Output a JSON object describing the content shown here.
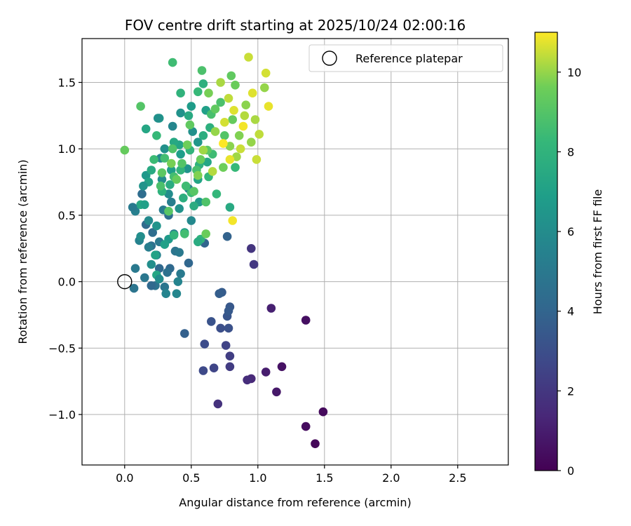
{
  "chart_data": {
    "type": "scatter",
    "title": "FOV centre drift starting at 2025/10/24 02:00:16",
    "xlabel": "Angular distance from reference (arcmin)",
    "ylabel": "Rotation from reference (arcmin)",
    "xlim": [
      -0.32,
      2.88
    ],
    "ylim": [
      -1.38,
      1.83
    ],
    "xticks": [
      0.0,
      0.5,
      1.0,
      1.5,
      2.0,
      2.5
    ],
    "xtick_labels": [
      "0.0",
      "0.5",
      "1.0",
      "1.5",
      "2.0",
      "2.5"
    ],
    "yticks": [
      -1.0,
      -0.5,
      0.0,
      0.5,
      1.0,
      1.5
    ],
    "ytick_labels": [
      "−1.0",
      "−0.5",
      "0.0",
      "0.5",
      "1.0",
      "1.5"
    ],
    "grid": true,
    "legend": {
      "position": "top-right",
      "entries": [
        "Reference platepar"
      ]
    },
    "colorbar": {
      "label": "Hours from first FF file",
      "range": [
        0,
        11
      ],
      "ticks": [
        0,
        2,
        4,
        6,
        8,
        10
      ],
      "tick_labels": [
        "0",
        "2",
        "4",
        "6",
        "8",
        "10"
      ],
      "colormap": "viridis"
    },
    "reference_point": {
      "name": "Reference platepar",
      "x": 0.0,
      "y": 0.0
    },
    "series": [
      {
        "values_format": "x, y, hours",
        "points": [
          [
            1.43,
            -1.22,
            0.2
          ],
          [
            1.49,
            -0.98,
            0.3
          ],
          [
            1.36,
            -1.09,
            0.4
          ],
          [
            1.36,
            -0.29,
            0.5
          ],
          [
            1.18,
            -0.64,
            0.6
          ],
          [
            1.14,
            -0.83,
            0.8
          ],
          [
            1.06,
            -0.68,
            1.0
          ],
          [
            1.1,
            -0.2,
            1.1
          ],
          [
            0.95,
            -0.73,
            1.4
          ],
          [
            0.92,
            -0.74,
            1.6
          ],
          [
            0.7,
            -0.92,
            1.8
          ],
          [
            0.95,
            0.25,
            1.9
          ],
          [
            0.97,
            0.13,
            2.0
          ],
          [
            0.79,
            -0.64,
            2.2
          ],
          [
            0.79,
            -0.56,
            2.3
          ],
          [
            0.76,
            -0.48,
            2.5
          ],
          [
            0.67,
            -0.65,
            2.6
          ],
          [
            0.59,
            -0.67,
            2.8
          ],
          [
            0.6,
            -0.47,
            2.9
          ],
          [
            0.72,
            -0.35,
            3.0
          ],
          [
            0.78,
            -0.35,
            3.1
          ],
          [
            0.65,
            -0.3,
            3.2
          ],
          [
            0.77,
            -0.26,
            3.3
          ],
          [
            0.79,
            -0.19,
            3.4
          ],
          [
            0.78,
            -0.22,
            3.5
          ],
          [
            0.73,
            -0.08,
            3.6
          ],
          [
            0.71,
            -0.09,
            3.7
          ],
          [
            0.45,
            -0.39,
            3.8
          ],
          [
            0.77,
            0.34,
            3.9
          ],
          [
            0.6,
            0.29,
            4.0
          ],
          [
            0.48,
            0.14,
            4.1
          ],
          [
            0.34,
            0.1,
            4.2
          ],
          [
            0.26,
            0.1,
            4.2
          ],
          [
            0.16,
            0.43,
            4.3
          ],
          [
            0.13,
            0.66,
            4.4
          ],
          [
            0.21,
            0.37,
            4.4
          ],
          [
            0.33,
            0.5,
            4.5
          ],
          [
            0.2,
            0.27,
            4.6
          ],
          [
            0.32,
            0.07,
            4.6
          ],
          [
            0.23,
            -0.03,
            4.7
          ],
          [
            0.3,
            -0.04,
            4.8
          ],
          [
            0.38,
            0.23,
            4.8
          ],
          [
            0.15,
            0.03,
            4.9
          ],
          [
            0.26,
            0.3,
            5.0
          ],
          [
            0.41,
            0.22,
            5.0
          ],
          [
            0.42,
            0.06,
            5.1
          ],
          [
            0.29,
            0.54,
            5.2
          ],
          [
            0.37,
            0.36,
            5.2
          ],
          [
            0.35,
            0.6,
            5.3
          ],
          [
            0.48,
            0.7,
            5.4
          ],
          [
            0.08,
            0.53,
            5.4
          ],
          [
            0.11,
            0.31,
            5.5
          ],
          [
            0.24,
            0.2,
            5.5
          ],
          [
            0.4,
            0.0,
            5.6
          ],
          [
            0.31,
            -0.09,
            5.6
          ],
          [
            0.39,
            -0.09,
            5.7
          ],
          [
            0.36,
            1.17,
            5.7
          ],
          [
            0.27,
            0.93,
            5.8
          ],
          [
            0.5,
            0.46,
            5.8
          ],
          [
            0.18,
            0.46,
            5.9
          ],
          [
            0.28,
            0.77,
            6.0
          ],
          [
            0.33,
            0.66,
            6.0
          ],
          [
            0.2,
            0.13,
            6.1
          ],
          [
            0.12,
            0.34,
            6.1
          ],
          [
            0.3,
            1.0,
            6.2
          ],
          [
            0.51,
            1.13,
            6.2
          ],
          [
            0.42,
            1.27,
            6.3
          ],
          [
            0.41,
            0.55,
            6.3
          ],
          [
            0.24,
            0.42,
            6.4
          ],
          [
            0.47,
            0.85,
            6.4
          ],
          [
            0.55,
            1.05,
            6.5
          ],
          [
            0.26,
            1.23,
            6.5
          ],
          [
            0.56,
            0.6,
            6.6
          ],
          [
            0.16,
            0.8,
            6.6
          ],
          [
            0.33,
            0.32,
            6.7
          ],
          [
            0.45,
            0.37,
            6.8
          ],
          [
            0.5,
            1.32,
            6.8
          ],
          [
            0.42,
            0.96,
            6.9
          ],
          [
            0.35,
            0.84,
            6.9
          ],
          [
            0.61,
            1.29,
            7.0
          ],
          [
            0.3,
            0.28,
            7.0
          ],
          [
            0.18,
            0.75,
            7.1
          ],
          [
            0.23,
            0.2,
            7.1
          ],
          [
            0.55,
            0.77,
            7.2
          ],
          [
            0.41,
            1.03,
            7.2
          ],
          [
            0.62,
            0.9,
            7.3
          ],
          [
            0.24,
            0.05,
            7.3
          ],
          [
            0.12,
            0.58,
            7.4
          ],
          [
            0.37,
            1.05,
            7.4
          ],
          [
            0.48,
            1.25,
            7.5
          ],
          [
            0.2,
            0.84,
            7.5
          ],
          [
            0.52,
            0.57,
            7.6
          ],
          [
            0.34,
            0.73,
            7.6
          ],
          [
            0.59,
            1.1,
            7.7
          ],
          [
            0.44,
            0.63,
            7.7
          ],
          [
            0.59,
            1.49,
            7.8
          ],
          [
            0.64,
            1.16,
            7.8
          ],
          [
            0.28,
            0.68,
            7.9
          ],
          [
            0.56,
            0.88,
            7.9
          ],
          [
            0.42,
            0.84,
            8.0
          ],
          [
            0.57,
            0.32,
            8.0
          ],
          [
            0.49,
            0.99,
            8.1
          ],
          [
            0.37,
            0.35,
            8.1
          ],
          [
            0.63,
            0.79,
            8.2
          ],
          [
            0.69,
            0.66,
            8.2
          ],
          [
            0.24,
            1.1,
            8.3
          ],
          [
            0.55,
            1.43,
            8.3
          ],
          [
            0.5,
            0.67,
            8.4
          ],
          [
            0.22,
            0.92,
            8.4
          ],
          [
            0.66,
            0.96,
            8.5
          ],
          [
            0.46,
            0.72,
            8.5
          ],
          [
            0.3,
            0.93,
            8.6
          ],
          [
            0.37,
            0.79,
            8.6
          ],
          [
            0.65,
            1.26,
            8.7
          ],
          [
            0.54,
            0.84,
            8.7
          ],
          [
            0.27,
            0.72,
            8.8
          ],
          [
            0.72,
            1.35,
            8.8
          ],
          [
            0.61,
            0.6,
            8.9
          ],
          [
            0.36,
            1.0,
            8.9
          ],
          [
            0.43,
            0.89,
            9.0
          ],
          [
            0.75,
            1.1,
            9.0
          ],
          [
            0.33,
            0.53,
            9.1
          ],
          [
            0.52,
            0.68,
            9.1
          ],
          [
            0.62,
            0.99,
            9.2
          ],
          [
            0.28,
            0.82,
            9.2
          ],
          [
            0.49,
            1.18,
            9.3
          ],
          [
            0.68,
            1.3,
            9.3
          ],
          [
            0.39,
            0.77,
            9.4
          ],
          [
            0.81,
            1.22,
            9.4
          ],
          [
            0.57,
            0.92,
            9.5
          ],
          [
            0.83,
            1.48,
            9.5
          ],
          [
            0.47,
            1.03,
            9.6
          ],
          [
            0.74,
            0.86,
            9.6
          ],
          [
            0.35,
            0.89,
            9.7
          ],
          [
            0.63,
            1.42,
            9.7
          ],
          [
            0.86,
            1.1,
            9.8
          ],
          [
            0.55,
            0.8,
            9.8
          ],
          [
            0.79,
            1.02,
            9.9
          ],
          [
            0.91,
            1.33,
            9.9
          ],
          [
            0.68,
            1.13,
            10.0
          ],
          [
            0.95,
            1.05,
            10.0
          ],
          [
            0.59,
            0.99,
            10.1
          ],
          [
            0.84,
            0.94,
            10.1
          ],
          [
            0.72,
            1.5,
            10.2
          ],
          [
            0.98,
            1.22,
            10.2
          ],
          [
            0.66,
            0.83,
            10.3
          ],
          [
            0.9,
            1.25,
            10.3
          ],
          [
            0.78,
            1.38,
            10.4
          ],
          [
            1.01,
            1.11,
            10.4
          ],
          [
            0.87,
            1.0,
            10.5
          ],
          [
            0.93,
            1.69,
            10.5
          ],
          [
            0.75,
            1.2,
            10.6
          ],
          [
            1.06,
            1.57,
            10.6
          ],
          [
            0.82,
            1.29,
            10.7
          ],
          [
            0.96,
            1.42,
            10.7
          ],
          [
            0.79,
            0.92,
            10.8
          ],
          [
            1.08,
            1.32,
            10.8
          ],
          [
            0.89,
            1.17,
            10.9
          ],
          [
            0.81,
            0.46,
            10.9
          ],
          [
            0.74,
            1.04,
            11.0
          ],
          [
            0.0,
            0.99,
            9.4
          ],
          [
            0.12,
            1.32,
            9.0
          ],
          [
            0.36,
            1.65,
            8.5
          ],
          [
            0.42,
            1.42,
            8.0
          ],
          [
            0.16,
            1.15,
            7.3
          ],
          [
            0.25,
            1.23,
            6.2
          ],
          [
            0.06,
            0.56,
            5.1
          ],
          [
            0.08,
            0.1,
            5.0
          ],
          [
            0.07,
            -0.05,
            4.8
          ],
          [
            0.2,
            -0.03,
            4.2
          ],
          [
            0.15,
            0.58,
            7.0
          ],
          [
            0.14,
            0.72,
            6.4
          ],
          [
            0.18,
            0.26,
            5.3
          ],
          [
            0.26,
            0.02,
            6.0
          ],
          [
            0.45,
            0.36,
            8.6
          ],
          [
            0.55,
            0.3,
            7.6
          ],
          [
            0.79,
            0.56,
            7.5
          ],
          [
            0.61,
            0.36,
            9.5
          ],
          [
            0.83,
            0.86,
            8.3
          ],
          [
            0.99,
            0.92,
            10.5
          ],
          [
            1.05,
            1.46,
            10.0
          ],
          [
            0.8,
            1.55,
            9.3
          ],
          [
            0.58,
            1.59,
            8.8
          ]
        ]
      }
    ]
  }
}
